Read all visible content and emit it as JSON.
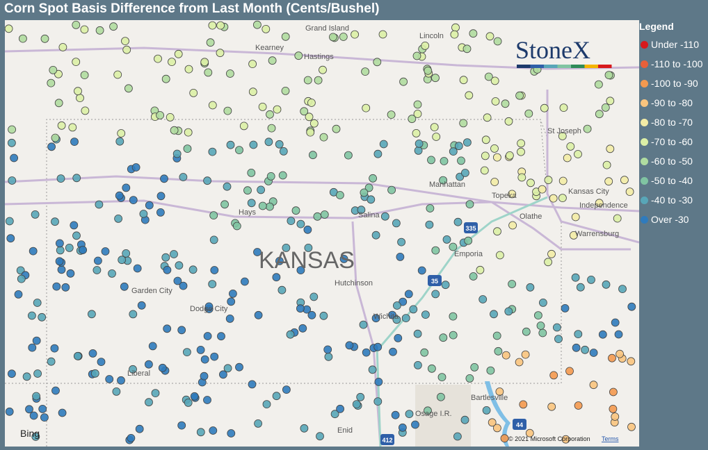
{
  "header": {
    "title": "Corn Spot Basis Difference from Last Month (Cents/Bushel)"
  },
  "legend": {
    "title": "Legend",
    "items": [
      {
        "name": "Under -110",
        "color": "#d7191c"
      },
      {
        "name": "-110 to -100",
        "color": "#e8603a"
      },
      {
        "name": "-100 to -90",
        "color": "#f4994f"
      },
      {
        "name": "-90 to -80",
        "color": "#f9c47e"
      },
      {
        "name": "-80 to -70",
        "color": "#f3eca6"
      },
      {
        "name": "-70 to -60",
        "color": "#dcefa6"
      },
      {
        "name": "-60 to -50",
        "color": "#b0dca0"
      },
      {
        "name": "-50 to -40",
        "color": "#80c4a2"
      },
      {
        "name": "-40 to -30",
        "color": "#58a6b8"
      },
      {
        "name": "Over -30",
        "color": "#2f7bbd"
      }
    ]
  },
  "map": {
    "state_label": "KANSAS",
    "places": [
      "Grand Island",
      "Kearney",
      "Hastings",
      "Lincoln",
      "St Joseph",
      "Manhattan",
      "Topeka",
      "Kansas City",
      "Independence",
      "Olathe",
      "Hays",
      "Salina",
      "Emporia",
      "Warrensburg",
      "Garden City",
      "Dodge City",
      "Hutchinson",
      "Wichita",
      "Liberal",
      "Bartlesville",
      "Osage I.R.",
      "Enid"
    ],
    "shields": [
      "335",
      "35",
      "44",
      "412"
    ],
    "logo": "StoneX",
    "provider": "Bing",
    "copyright": "© 2021 Microsoft Corporation",
    "terms": "Terms"
  }
}
